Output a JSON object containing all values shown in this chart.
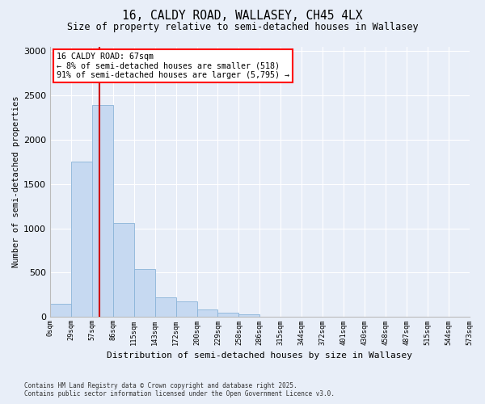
{
  "title_line1": "16, CALDY ROAD, WALLASEY, CH45 4LX",
  "title_line2": "Size of property relative to semi-detached houses in Wallasey",
  "xlabel": "Distribution of semi-detached houses by size in Wallasey",
  "ylabel": "Number of semi-detached properties",
  "annotation_title": "16 CALDY ROAD: 67sqm",
  "annotation_line2": "← 8% of semi-detached houses are smaller (518)",
  "annotation_line3": "91% of semi-detached houses are larger (5,795) →",
  "footnote1": "Contains HM Land Registry data © Crown copyright and database right 2025.",
  "footnote2": "Contains public sector information licensed under the Open Government Licence v3.0.",
  "bin_labels": [
    "0sqm",
    "29sqm",
    "57sqm",
    "86sqm",
    "115sqm",
    "143sqm",
    "172sqm",
    "200sqm",
    "229sqm",
    "258sqm",
    "286sqm",
    "315sqm",
    "344sqm",
    "372sqm",
    "401sqm",
    "430sqm",
    "458sqm",
    "487sqm",
    "515sqm",
    "544sqm",
    "573sqm"
  ],
  "bar_values": [
    150,
    1750,
    2390,
    1060,
    540,
    220,
    175,
    85,
    50,
    35,
    0,
    0,
    0,
    0,
    0,
    0,
    0,
    0,
    0,
    0
  ],
  "bar_color": "#c6d9f1",
  "bar_edge_color": "#8ab4d8",
  "vline_color": "#cc0000",
  "background_color": "#e8eef8",
  "grid_color": "#ffffff",
  "ylim": [
    0,
    3050
  ],
  "yticks": [
    0,
    500,
    1000,
    1500,
    2000,
    2500,
    3000
  ]
}
